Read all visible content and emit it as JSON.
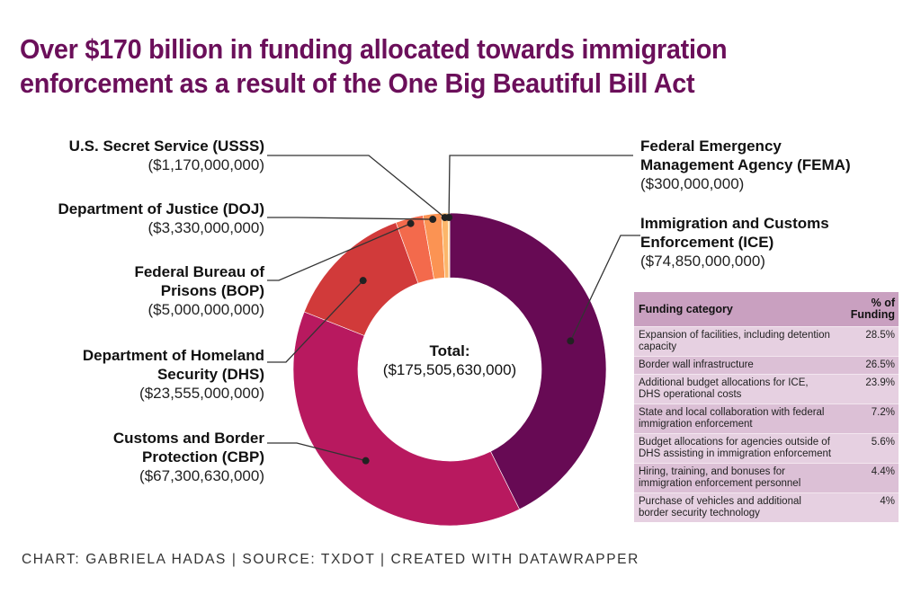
{
  "title": "Over $170 billion in funding allocated towards immigration enforcement as a result of the One Big Beautiful Bill Act",
  "chart_data": {
    "type": "pie",
    "subtype": "donut",
    "title": "Over $170 billion in funding allocated towards immigration enforcement as a result of the One Big Beautiful Bill Act",
    "center_label": "Total:",
    "center_value": "($175,505,630,000)",
    "total": 175505630000,
    "slices": [
      {
        "key": "ice",
        "name": "Immigration and Customs Enforcement (ICE)",
        "value": 74850000000,
        "value_label": "($74,850,000,000)",
        "color": "#670a54"
      },
      {
        "key": "cbp",
        "name": "Customs and Border Protection (CBP)",
        "value": 67300630000,
        "value_label": "($67,300,630,000)",
        "color": "#b8195f"
      },
      {
        "key": "dhs",
        "name": "Department of Homeland Security (DHS)",
        "value": 23555000000,
        "value_label": "($23,555,000,000)",
        "color": "#d13a3a"
      },
      {
        "key": "bop",
        "name": "Federal Bureau of Prisons (BOP)",
        "value": 5000000000,
        "value_label": "($5,000,000,000)",
        "color": "#f36a4c"
      },
      {
        "key": "doj",
        "name": "Department of Justice (DOJ)",
        "value": 3330000000,
        "value_label": "($3,330,000,000)",
        "color": "#fb9353"
      },
      {
        "key": "usss",
        "name": "U.S. Secret Service (USSS)",
        "value": 1170000000,
        "value_label": "($1,170,000,000)",
        "color": "#fcb66a"
      },
      {
        "key": "fema",
        "name": "Federal Emergency Management Agency (FEMA)",
        "value": 300000000,
        "value_label": "($300,000,000)",
        "color": "#fdd590"
      }
    ]
  },
  "labels": {
    "usss": {
      "name": "U.S. Secret Service (USSS)",
      "amount": "($1,170,000,000)"
    },
    "doj": {
      "name": "Department of Justice (DOJ)",
      "amount": "($3,330,000,000)"
    },
    "bop": {
      "name_line1": "Federal Bureau of",
      "name_line2": "Prisons (BOP)",
      "amount": "($5,000,000,000)"
    },
    "dhs": {
      "name_line1": "Department of Homeland",
      "name_line2": "Security (DHS)",
      "amount": "($23,555,000,000)"
    },
    "cbp": {
      "name_line1": "Customs and Border",
      "name_line2": "Protection (CBP)",
      "amount": "($67,300,630,000)"
    },
    "fema": {
      "name_line1": "Federal Emergency",
      "name_line2": "Management Agency (FEMA)",
      "amount": "($300,000,000)"
    },
    "ice": {
      "name_line1": "Immigration and Customs",
      "name_line2": "Enforcement (ICE)",
      "amount": "($74,850,000,000)"
    }
  },
  "table": {
    "headers": [
      "Funding category",
      "% of Funding"
    ],
    "rows": [
      {
        "category": "Expansion of facilities, including detention capacity",
        "pct": "28.5%"
      },
      {
        "category": "Border wall infrastructure",
        "pct": "26.5%"
      },
      {
        "category": "Additional budget allocations for ICE, DHS operational costs",
        "pct": "23.9%"
      },
      {
        "category": "State and local collaboration with federal immigration enforcement",
        "pct": "7.2%"
      },
      {
        "category": "Budget allocations for agencies outside of DHS assisting in immigration enforcement",
        "pct": "5.6%"
      },
      {
        "category": "Hiring, training, and bonuses for immigration enforcement personnel",
        "pct": "4.4%"
      },
      {
        "category": "Purchase of vehicles and additional border security technology",
        "pct": "4%"
      }
    ]
  },
  "footer": "CHART: GABRIELA HADAS | SOURCE: TXDOT | CREATED WITH DATAWRAPPER"
}
